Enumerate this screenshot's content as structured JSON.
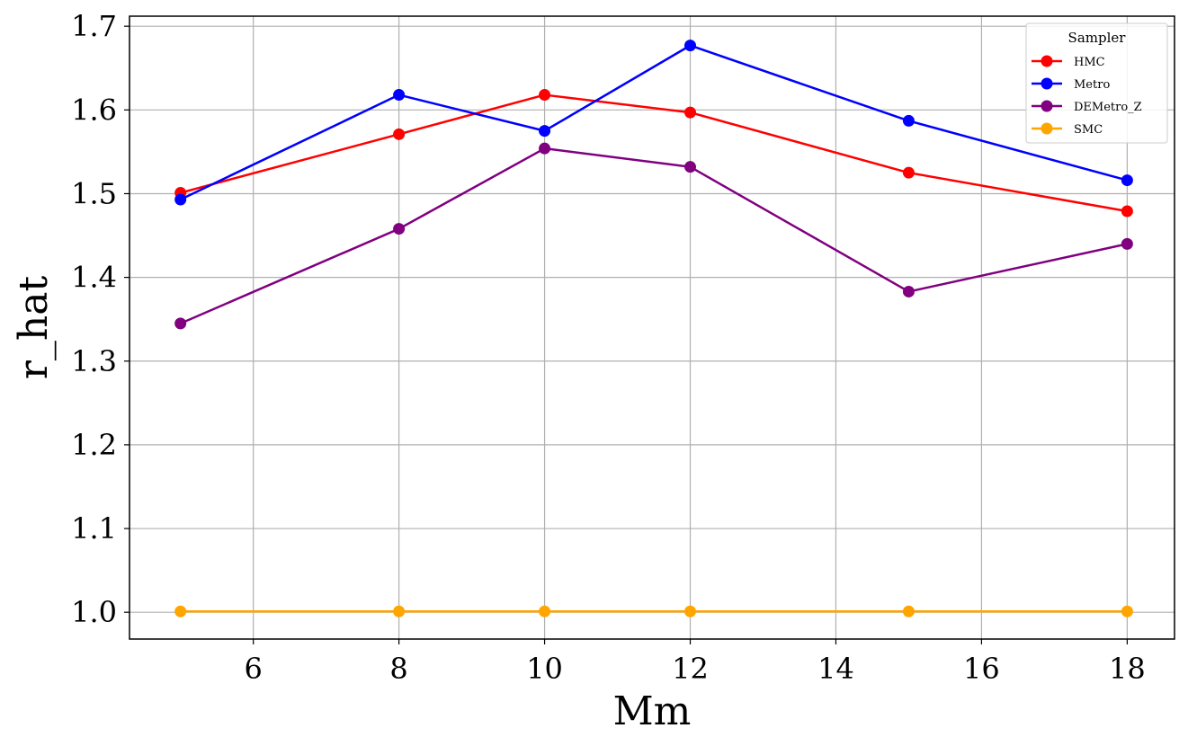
{
  "chart_data": {
    "type": "line",
    "xlabel": "Mm",
    "ylabel": "r_hat",
    "xlim": [
      4.3,
      18.65
    ],
    "ylim": [
      0.968,
      1.712
    ],
    "xticks": [
      6,
      8,
      10,
      12,
      14,
      16,
      18
    ],
    "yticks": [
      1.0,
      1.1,
      1.2,
      1.3,
      1.4,
      1.5,
      1.6,
      1.7
    ],
    "xtick_labels": [
      "6",
      "8",
      "10",
      "12",
      "14",
      "16",
      "18"
    ],
    "ytick_labels": [
      "1.0",
      "1.1",
      "1.2",
      "1.3",
      "1.4",
      "1.5",
      "1.6",
      "1.7"
    ],
    "grid": true,
    "legend_title": "Sampler",
    "legend_position": "top-right",
    "x": [
      5,
      8,
      10,
      12,
      15,
      18
    ],
    "series": [
      {
        "name": "HMC",
        "color": "#ff0000",
        "values": [
          1.501,
          1.571,
          1.618,
          1.597,
          1.525,
          1.479
        ]
      },
      {
        "name": "Metro",
        "color": "#0000ff",
        "values": [
          1.493,
          1.618,
          1.575,
          1.677,
          1.587,
          1.516
        ]
      },
      {
        "name": "DEMetro_Z",
        "color": "#800080",
        "values": [
          1.345,
          1.458,
          1.554,
          1.532,
          1.383,
          1.44
        ]
      },
      {
        "name": "SMC",
        "color": "#ffa500",
        "values": [
          1.001,
          1.001,
          1.001,
          1.001,
          1.001,
          1.001
        ]
      }
    ]
  }
}
